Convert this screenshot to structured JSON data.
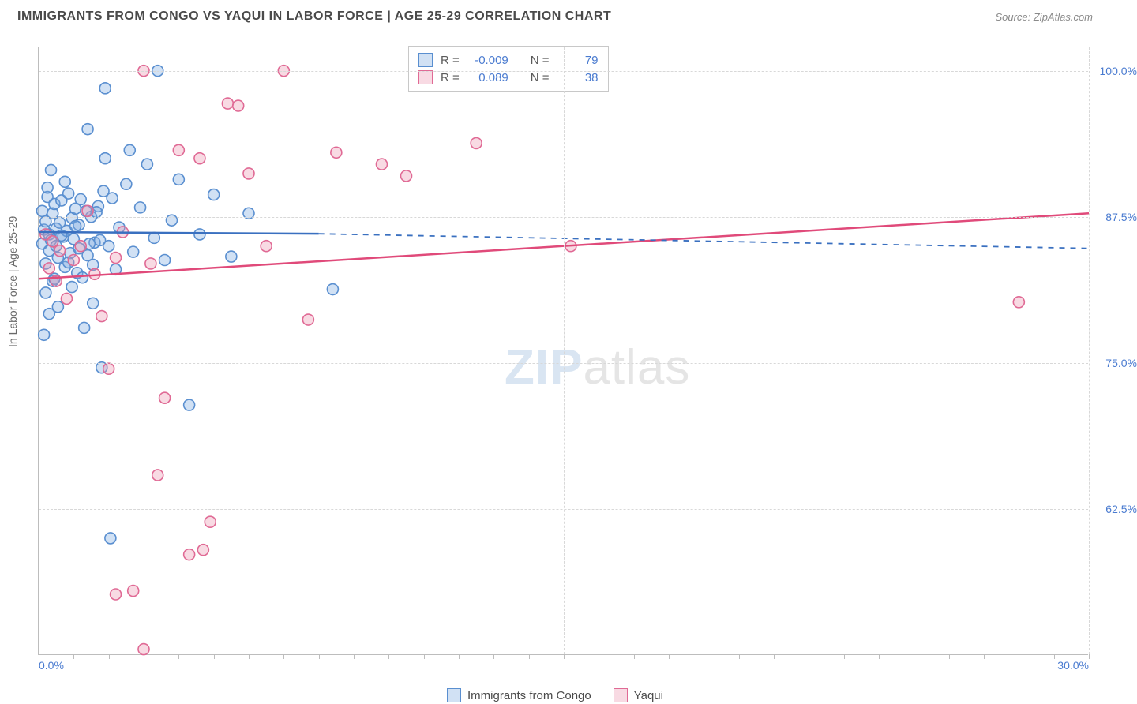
{
  "title": "IMMIGRANTS FROM CONGO VS YAQUI IN LABOR FORCE | AGE 25-29 CORRELATION CHART",
  "source": "Source: ZipAtlas.com",
  "y_axis_label": "In Labor Force | Age 25-29",
  "x_axis": {
    "min": 0,
    "max": 30,
    "ticks": [
      0,
      1,
      2,
      3,
      4,
      5,
      6,
      7,
      8,
      9,
      10,
      11,
      12,
      13,
      14,
      15,
      16,
      17,
      18,
      19,
      20,
      21,
      22,
      23,
      24,
      25,
      26,
      27,
      28,
      29,
      30
    ],
    "grid_ticks": [
      15,
      30
    ],
    "label_left": "0.0%",
    "label_right": "30.0%"
  },
  "y_axis": {
    "min": 50,
    "max": 102,
    "grid_ticks": [
      62.5,
      75,
      87.5,
      100
    ],
    "labels": [
      "62.5%",
      "75.0%",
      "87.5%",
      "100.0%"
    ]
  },
  "series_a": {
    "name": "Immigrants from Congo",
    "color_fill": "rgba(122,168,224,0.35)",
    "color_stroke": "#5a8fd0",
    "line_color": "#3a70c0",
    "r": "-0.009",
    "n": "79",
    "reg_start": {
      "x": 0,
      "y": 86.2
    },
    "reg_solid_end": {
      "x": 8,
      "y": 86.05
    },
    "reg_dash_end": {
      "x": 30,
      "y": 84.8
    },
    "points": [
      {
        "x": 0.1,
        "y": 85.2
      },
      {
        "x": 0.1,
        "y": 88.0
      },
      {
        "x": 0.15,
        "y": 86.4
      },
      {
        "x": 0.2,
        "y": 83.5
      },
      {
        "x": 0.2,
        "y": 87.1
      },
      {
        "x": 0.25,
        "y": 89.2
      },
      {
        "x": 0.3,
        "y": 84.6
      },
      {
        "x": 0.3,
        "y": 86.0
      },
      {
        "x": 0.35,
        "y": 85.5
      },
      {
        "x": 0.4,
        "y": 87.8
      },
      {
        "x": 0.4,
        "y": 82.0
      },
      {
        "x": 0.45,
        "y": 88.6
      },
      {
        "x": 0.5,
        "y": 85.0
      },
      {
        "x": 0.5,
        "y": 86.5
      },
      {
        "x": 0.55,
        "y": 84.0
      },
      {
        "x": 0.6,
        "y": 87.0
      },
      {
        "x": 0.65,
        "y": 88.9
      },
      {
        "x": 0.7,
        "y": 85.8
      },
      {
        "x": 0.75,
        "y": 83.2
      },
      {
        "x": 0.8,
        "y": 86.3
      },
      {
        "x": 0.85,
        "y": 89.5
      },
      {
        "x": 0.9,
        "y": 84.4
      },
      {
        "x": 0.95,
        "y": 87.4
      },
      {
        "x": 1.0,
        "y": 85.6
      },
      {
        "x": 1.05,
        "y": 88.2
      },
      {
        "x": 1.1,
        "y": 82.7
      },
      {
        "x": 1.15,
        "y": 86.8
      },
      {
        "x": 1.2,
        "y": 89.0
      },
      {
        "x": 1.3,
        "y": 78.0
      },
      {
        "x": 1.4,
        "y": 84.2
      },
      {
        "x": 1.5,
        "y": 87.5
      },
      {
        "x": 1.55,
        "y": 80.1
      },
      {
        "x": 1.6,
        "y": 85.3
      },
      {
        "x": 1.7,
        "y": 88.4
      },
      {
        "x": 1.8,
        "y": 74.6
      },
      {
        "x": 1.9,
        "y": 92.5
      },
      {
        "x": 2.0,
        "y": 85.0
      },
      {
        "x": 2.05,
        "y": 60.0
      },
      {
        "x": 2.1,
        "y": 89.1
      },
      {
        "x": 2.2,
        "y": 83.0
      },
      {
        "x": 2.3,
        "y": 86.6
      },
      {
        "x": 2.5,
        "y": 90.3
      },
      {
        "x": 2.7,
        "y": 84.5
      },
      {
        "x": 2.9,
        "y": 88.3
      },
      {
        "x": 3.1,
        "y": 92.0
      },
      {
        "x": 3.3,
        "y": 85.7
      },
      {
        "x": 3.4,
        "y": 100.0
      },
      {
        "x": 3.6,
        "y": 83.8
      },
      {
        "x": 3.8,
        "y": 87.2
      },
      {
        "x": 4.0,
        "y": 90.7
      },
      {
        "x": 4.3,
        "y": 71.4
      },
      {
        "x": 4.6,
        "y": 86.0
      },
      {
        "x": 5.0,
        "y": 89.4
      },
      {
        "x": 5.5,
        "y": 84.1
      },
      {
        "x": 6.0,
        "y": 87.8
      },
      {
        "x": 1.9,
        "y": 98.5
      },
      {
        "x": 8.4,
        "y": 81.3
      },
      {
        "x": 0.2,
        "y": 81.0
      },
      {
        "x": 0.3,
        "y": 79.2
      },
      {
        "x": 0.15,
        "y": 77.4
      },
      {
        "x": 0.25,
        "y": 90.0
      },
      {
        "x": 0.35,
        "y": 91.5
      },
      {
        "x": 0.45,
        "y": 82.2
      },
      {
        "x": 0.55,
        "y": 79.8
      },
      {
        "x": 0.65,
        "y": 85.9
      },
      {
        "x": 0.75,
        "y": 90.5
      },
      {
        "x": 0.85,
        "y": 83.6
      },
      {
        "x": 0.95,
        "y": 81.5
      },
      {
        "x": 1.05,
        "y": 86.7
      },
      {
        "x": 1.15,
        "y": 84.8
      },
      {
        "x": 1.25,
        "y": 82.3
      },
      {
        "x": 1.35,
        "y": 88.0
      },
      {
        "x": 1.45,
        "y": 85.2
      },
      {
        "x": 1.55,
        "y": 83.4
      },
      {
        "x": 1.65,
        "y": 87.9
      },
      {
        "x": 1.75,
        "y": 85.5
      },
      {
        "x": 1.85,
        "y": 89.7
      },
      {
        "x": 1.4,
        "y": 95.0
      },
      {
        "x": 2.6,
        "y": 93.2
      }
    ]
  },
  "series_b": {
    "name": "Yaqui",
    "color_fill": "rgba(235,150,175,0.35)",
    "color_stroke": "#e06a95",
    "line_color": "#e04a7a",
    "r": "0.089",
    "n": "38",
    "reg_start": {
      "x": 0,
      "y": 82.2
    },
    "reg_solid_end": {
      "x": 30,
      "y": 87.8
    },
    "points": [
      {
        "x": 0.2,
        "y": 86.0
      },
      {
        "x": 0.3,
        "y": 83.1
      },
      {
        "x": 0.4,
        "y": 85.4
      },
      {
        "x": 0.5,
        "y": 82.0
      },
      {
        "x": 0.6,
        "y": 84.6
      },
      {
        "x": 0.8,
        "y": 80.5
      },
      {
        "x": 1.0,
        "y": 83.8
      },
      {
        "x": 1.2,
        "y": 85.0
      },
      {
        "x": 1.4,
        "y": 88.0
      },
      {
        "x": 1.6,
        "y": 82.6
      },
      {
        "x": 1.8,
        "y": 79.0
      },
      {
        "x": 2.0,
        "y": 74.5
      },
      {
        "x": 2.2,
        "y": 84.0
      },
      {
        "x": 2.4,
        "y": 86.2
      },
      {
        "x": 2.7,
        "y": 55.5
      },
      {
        "x": 3.0,
        "y": 100.0
      },
      {
        "x": 3.2,
        "y": 83.5
      },
      {
        "x": 3.4,
        "y": 65.4
      },
      {
        "x": 3.6,
        "y": 72.0
      },
      {
        "x": 4.0,
        "y": 93.2
      },
      {
        "x": 4.3,
        "y": 58.6
      },
      {
        "x": 4.6,
        "y": 92.5
      },
      {
        "x": 4.9,
        "y": 61.4
      },
      {
        "x": 5.4,
        "y": 97.2
      },
      {
        "x": 5.7,
        "y": 97.0
      },
      {
        "x": 6.0,
        "y": 91.2
      },
      {
        "x": 6.5,
        "y": 85.0
      },
      {
        "x": 7.0,
        "y": 100.0
      },
      {
        "x": 7.7,
        "y": 78.7
      },
      {
        "x": 8.5,
        "y": 93.0
      },
      {
        "x": 9.8,
        "y": 92.0
      },
      {
        "x": 10.5,
        "y": 91.0
      },
      {
        "x": 12.5,
        "y": 93.8
      },
      {
        "x": 15.2,
        "y": 85.0
      },
      {
        "x": 28.0,
        "y": 80.2
      },
      {
        "x": 3.0,
        "y": 50.5
      },
      {
        "x": 2.2,
        "y": 55.2
      },
      {
        "x": 4.7,
        "y": 59.0
      }
    ]
  },
  "legend_top": {
    "r_label": "R =",
    "n_label": "N ="
  },
  "watermark": {
    "bold": "ZIP",
    "light": "atlas"
  },
  "marker_radius": 7,
  "marker_stroke_width": 1.6,
  "line_width": 2.5
}
